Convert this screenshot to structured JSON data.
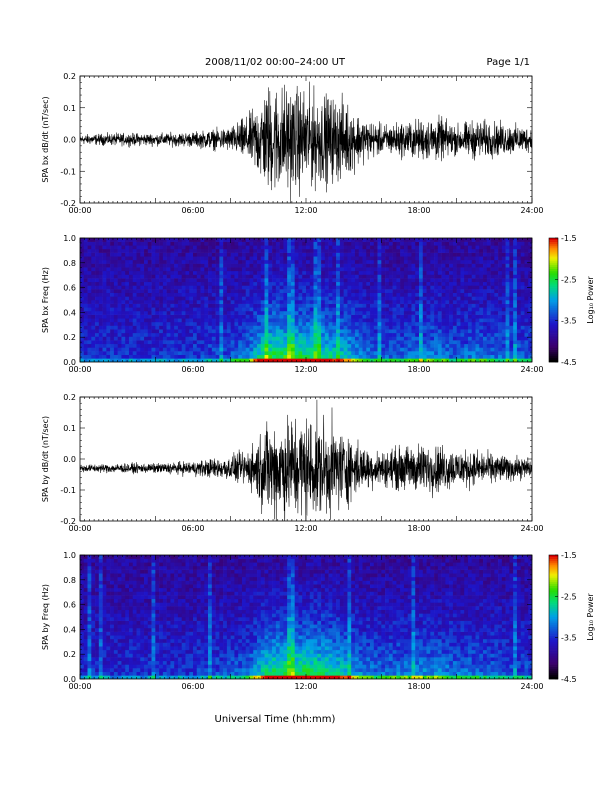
{
  "header": {
    "title": "2008/11/02  00:00–24:00 UT",
    "page": "Page 1/1"
  },
  "x_axis": {
    "label": "Universal Time (hh:mm)",
    "ticks": [
      "00:00",
      "06:00",
      "12:00",
      "18:00",
      "24:00"
    ]
  },
  "colorbar": {
    "label": "Log₁₀ Power",
    "ticks": [
      "-1.5",
      "-2.5",
      "-3.5",
      "-4.5"
    ]
  },
  "chart_data": [
    {
      "type": "line",
      "ylabel": "SPA bx dB/dt (nT/sec)",
      "xlim_hours": [
        0,
        24
      ],
      "ylim": [
        -0.2,
        0.2
      ],
      "y_ticks": [
        "0.2",
        "0.1",
        "0.0",
        "-0.1",
        "-0.2"
      ],
      "envelope": {
        "x_hours": [
          0,
          2,
          4,
          6,
          8,
          9,
          10,
          11,
          12,
          13,
          14,
          15,
          16,
          17,
          18,
          19,
          20,
          21,
          22,
          23,
          24
        ],
        "amplitude": [
          0.02,
          0.025,
          0.025,
          0.03,
          0.05,
          0.1,
          0.22,
          0.22,
          0.2,
          0.18,
          0.16,
          0.09,
          0.06,
          0.07,
          0.08,
          0.09,
          0.06,
          0.08,
          0.07,
          0.06,
          0.05
        ],
        "offset": 0.0
      }
    },
    {
      "type": "heatmap",
      "ylabel": "SPA bx Freq (Hz)",
      "xlim_hours": [
        0,
        24
      ],
      "ylim": [
        0,
        1.0
      ],
      "y_ticks": [
        "1.0",
        "0.8",
        "0.6",
        "0.4",
        "0.2",
        "0.0"
      ],
      "zlim": [
        -4.5,
        -1.5
      ]
    },
    {
      "type": "line",
      "ylabel": "SPA by dB/dt (nT/sec)",
      "xlim_hours": [
        0,
        24
      ],
      "ylim": [
        -0.2,
        0.2
      ],
      "y_ticks": [
        "0.2",
        "0.1",
        "0.0",
        "-0.1",
        "-0.2"
      ],
      "envelope": {
        "x_hours": [
          0,
          2,
          4,
          6,
          8,
          9,
          10,
          11,
          12,
          13,
          14,
          15,
          16,
          17,
          18,
          19,
          20,
          21,
          22,
          23,
          24
        ],
        "amplitude": [
          0.015,
          0.02,
          0.02,
          0.03,
          0.05,
          0.08,
          0.2,
          0.22,
          0.22,
          0.2,
          0.16,
          0.09,
          0.07,
          0.09,
          0.1,
          0.1,
          0.08,
          0.07,
          0.06,
          0.05,
          0.04
        ],
        "offset": -0.03
      }
    },
    {
      "type": "heatmap",
      "ylabel": "SPA by Freq (Hz)",
      "xlim_hours": [
        0,
        24
      ],
      "ylim": [
        0,
        1.0
      ],
      "y_ticks": [
        "1.0",
        "0.8",
        "0.6",
        "0.4",
        "0.2",
        "0.0"
      ],
      "zlim": [
        -4.5,
        -1.5
      ]
    }
  ]
}
